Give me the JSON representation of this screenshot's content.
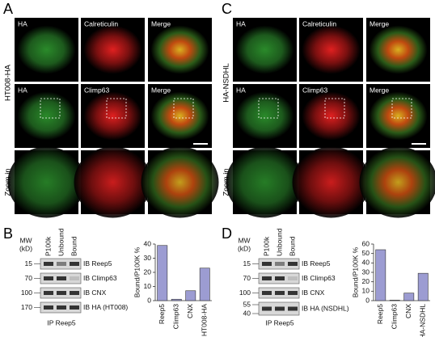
{
  "panel_A": {
    "letter": "A",
    "side_label": "HT008-HA",
    "zoom_label": "Zoom in",
    "row1": [
      "HA",
      "Calreticulin",
      "Merge"
    ],
    "row2": [
      "HA",
      "Climp63",
      "Merge"
    ]
  },
  "panel_C": {
    "letter": "C",
    "side_label": "HA-NSDHL",
    "zoom_label": "Zoom in",
    "row1": [
      "HA",
      "Calreticulin",
      "Merge"
    ],
    "row2": [
      "HA",
      "Climp63",
      "Merge"
    ]
  },
  "panel_B": {
    "letter": "B",
    "mw": "MW",
    "unit": "(kD)",
    "lanes": [
      "P100k",
      "Unbound",
      "Bound"
    ],
    "blots": [
      {
        "mw": [
          15
        ],
        "label": "IB Reep5"
      },
      {
        "mw": [
          70
        ],
        "label": "IB Climp63"
      },
      {
        "mw": [
          100
        ],
        "label": "IB CNX"
      },
      {
        "mw": [
          170
        ],
        "label": "IB HA (HT008)"
      }
    ],
    "ip_label": "IP Reep5"
  },
  "panel_D": {
    "letter": "D",
    "mw": "MW",
    "unit": "(kD)",
    "lanes": [
      "P100k",
      "Unbound",
      "Bound"
    ],
    "blots": [
      {
        "mw": [
          15
        ],
        "label": "IB Reep5"
      },
      {
        "mw": [
          70
        ],
        "label": "IB Climp63"
      },
      {
        "mw": [
          100
        ],
        "label": "IB CNX"
      },
      {
        "mw": [
          55,
          40
        ],
        "label": "IB HA (NSDHL)"
      }
    ],
    "ip_label": "IP Reep5"
  },
  "chart_data": [
    {
      "type": "bar",
      "y_label": "Bound/P100K %",
      "categories": [
        "Reep5",
        "Climp63",
        "CNX",
        "HT008-HA"
      ],
      "values": [
        39,
        1,
        7,
        23
      ],
      "color": "#9c9cd2",
      "ylim": [
        0,
        40
      ],
      "yticks": [
        0,
        10,
        20,
        30,
        40
      ]
    },
    {
      "type": "bar",
      "y_label": "Bound/P100K %",
      "categories": [
        "Reep5",
        "Climp63",
        "CNX",
        "HA-NSDHL"
      ],
      "values": [
        54,
        0.5,
        8,
        29
      ],
      "color": "#9c9cd2",
      "ylim": [
        0,
        60
      ],
      "yticks": [
        0,
        10,
        20,
        30,
        40,
        50,
        60
      ]
    }
  ]
}
